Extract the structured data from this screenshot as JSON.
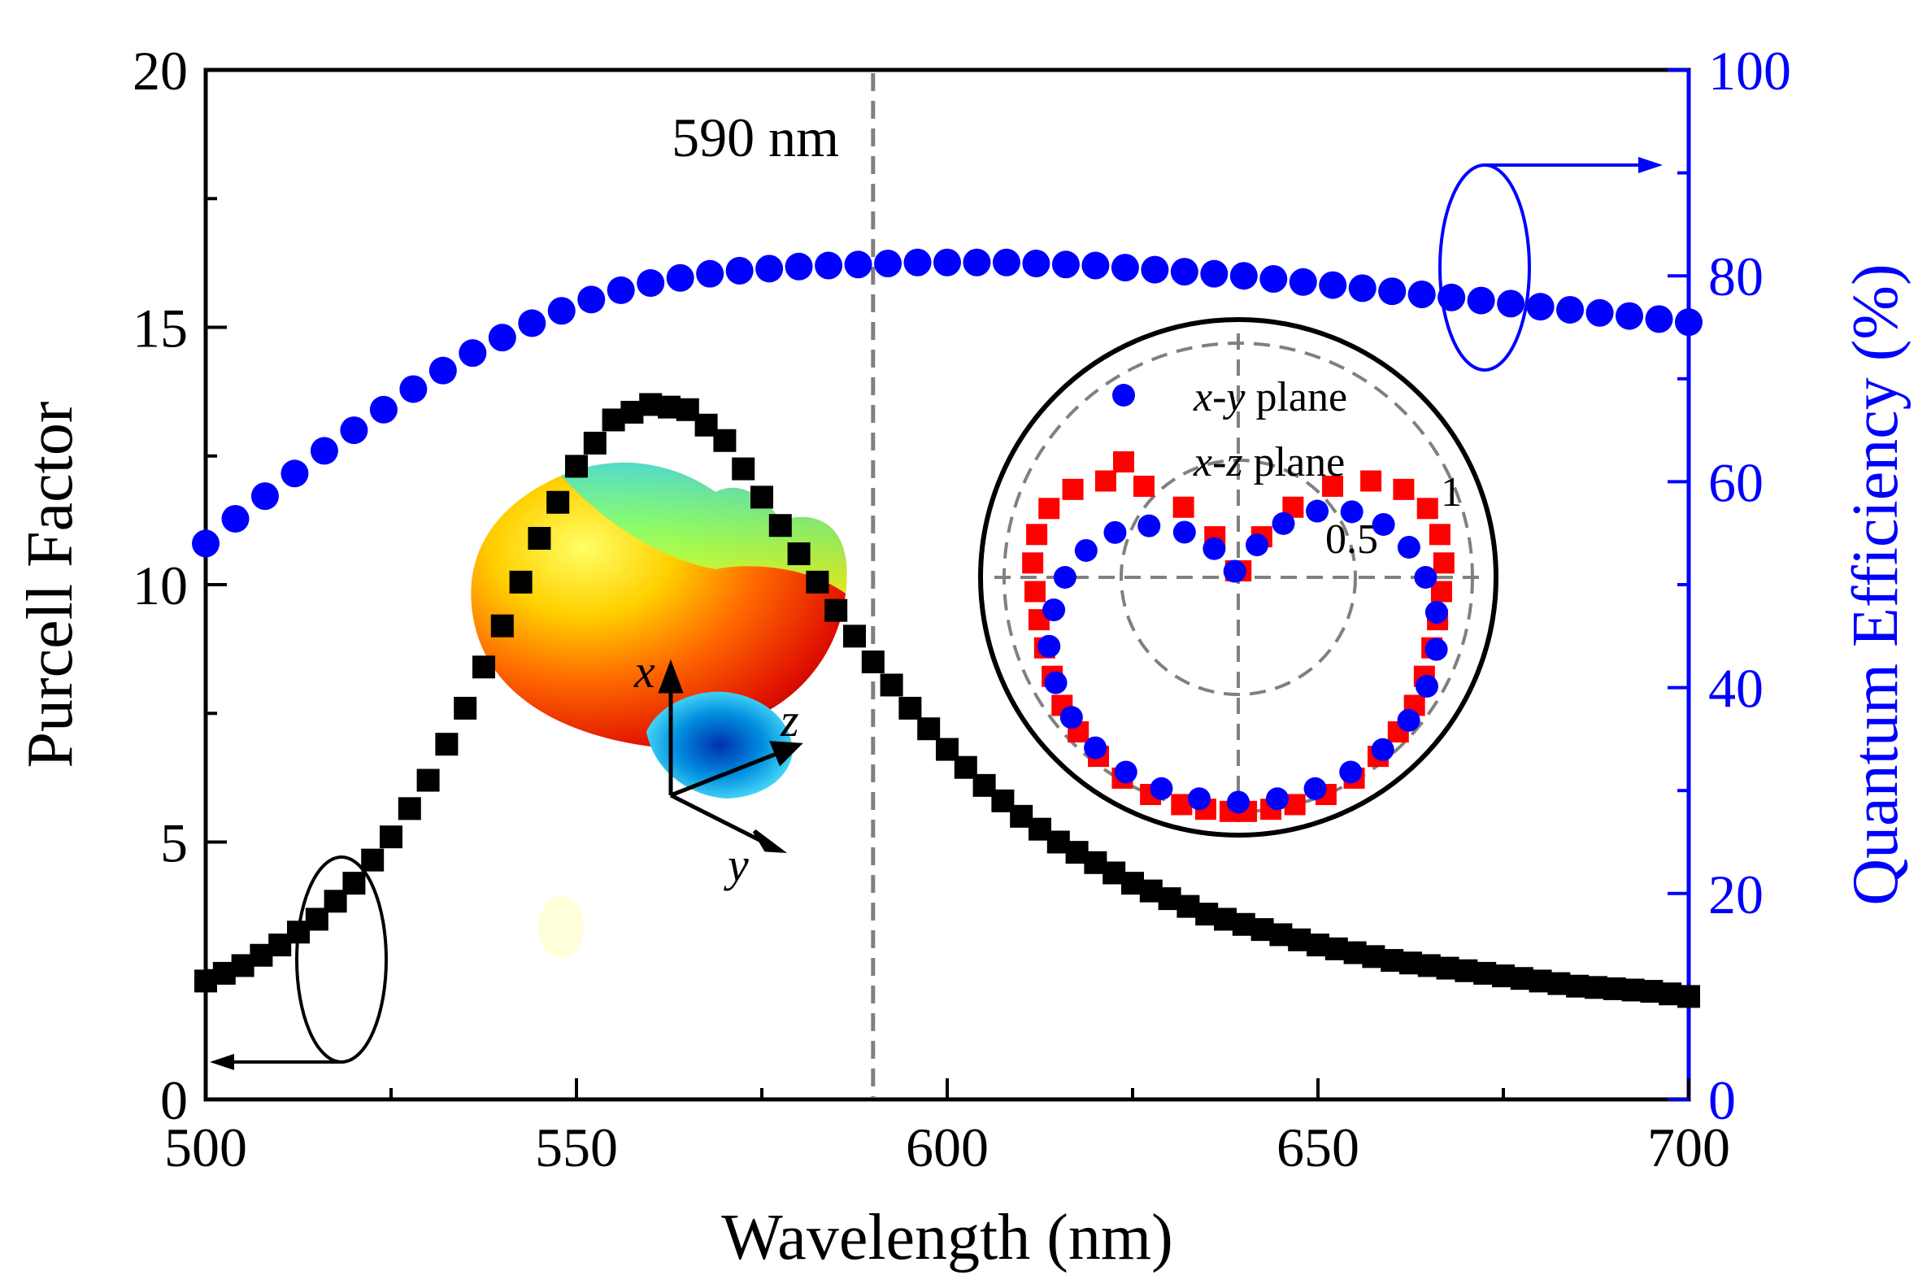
{
  "chart_data": {
    "type": "scatter",
    "xlabel": "Wavelength (nm)",
    "ylabel": "Purcell Factor",
    "y2label": "Quantum Efficiency (%)",
    "xlim": [
      500,
      700
    ],
    "ylim": [
      0,
      20
    ],
    "y2lim": [
      0,
      100
    ],
    "xticks": [
      "500",
      "550",
      "600",
      "650",
      "700"
    ],
    "yticks": [
      "0",
      "5",
      "10",
      "15",
      "20"
    ],
    "y2ticks": [
      "0",
      "20",
      "40",
      "60",
      "80",
      "100"
    ],
    "grid": false,
    "marker_line": {
      "x": 590,
      "label": "590 nm"
    },
    "colors": {
      "purcell": "#000000",
      "qe": "#0000ff",
      "xz": "#ff0000",
      "axis_right": "#0000ff"
    },
    "series": [
      {
        "axis": "left",
        "marker": "square",
        "color": "#000000",
        "x": [
          500,
          505,
          510,
          515,
          520,
          525,
          530,
          535,
          540,
          545,
          550,
          555,
          560,
          565,
          570,
          575,
          580,
          585,
          590,
          595,
          600,
          605,
          610,
          615,
          620,
          625,
          630,
          635,
          640,
          645,
          650,
          655,
          660,
          665,
          670,
          675,
          680,
          685,
          690,
          695,
          700
        ],
        "values": [
          2.3,
          2.6,
          3.0,
          3.5,
          4.2,
          5.1,
          6.2,
          7.6,
          9.2,
          10.9,
          12.3,
          13.2,
          13.5,
          13.4,
          12.8,
          11.7,
          10.6,
          9.5,
          8.5,
          7.6,
          6.8,
          6.1,
          5.5,
          5.0,
          4.6,
          4.2,
          3.9,
          3.6,
          3.4,
          3.2,
          3.0,
          2.85,
          2.7,
          2.6,
          2.5,
          2.4,
          2.3,
          2.2,
          2.15,
          2.1,
          2.0
        ]
      },
      {
        "axis": "right",
        "marker": "circle",
        "color": "#0000ff",
        "x": [
          500,
          504,
          508,
          512,
          516,
          520,
          524,
          528,
          532,
          536,
          540,
          544,
          548,
          552,
          556,
          560,
          564,
          568,
          572,
          576,
          580,
          584,
          588,
          592,
          596,
          600,
          604,
          608,
          612,
          616,
          620,
          624,
          628,
          632,
          636,
          640,
          644,
          648,
          652,
          656,
          660,
          664,
          668,
          672,
          676,
          680,
          684,
          688,
          692,
          696,
          700
        ],
        "values": [
          54.0,
          56.4,
          58.6,
          60.8,
          63.0,
          65.0,
          67.0,
          69.0,
          70.8,
          72.5,
          74.0,
          75.4,
          76.6,
          77.7,
          78.6,
          79.3,
          79.8,
          80.2,
          80.5,
          80.7,
          80.9,
          81.0,
          81.1,
          81.2,
          81.3,
          81.3,
          81.3,
          81.3,
          81.2,
          81.1,
          81.0,
          80.8,
          80.6,
          80.4,
          80.2,
          80.0,
          79.7,
          79.4,
          79.1,
          78.8,
          78.5,
          78.2,
          77.9,
          77.6,
          77.3,
          77.0,
          76.7,
          76.4,
          76.1,
          75.8,
          75.5
        ]
      }
    ],
    "inset_polar": {
      "legend": [
        {
          "label_italic": "x-y",
          "label_rest": " plane",
          "marker": "circle",
          "color": "#0000ff"
        },
        {
          "label_italic": "x-z",
          "label_rest": " plane",
          "marker": "square",
          "color": "#ff0000"
        }
      ],
      "radial_ticks": [
        "0.5",
        "1"
      ],
      "xy_plane": {
        "angles_deg": [
          120,
          130,
          140,
          150,
          160,
          170,
          180,
          190,
          200,
          210,
          220,
          230,
          240,
          250,
          260,
          270,
          280,
          290,
          300,
          310,
          320,
          330,
          340,
          350,
          360,
          370,
          380,
          390,
          400,
          410,
          420
        ],
        "r": [
          0.03,
          0.16,
          0.3,
          0.44,
          0.56,
          0.66,
          0.74,
          0.8,
          0.86,
          0.9,
          0.93,
          0.95,
          0.96,
          0.96,
          0.96,
          0.96,
          0.96,
          0.96,
          0.96,
          0.96,
          0.95,
          0.93,
          0.9,
          0.86,
          0.8,
          0.74,
          0.66,
          0.56,
          0.44,
          0.3,
          0.16
        ]
      },
      "xz_plane": {
        "angles_deg": [
          112,
          120,
          128,
          136,
          144,
          152,
          160,
          168,
          176,
          184,
          192,
          200,
          208,
          216,
          224,
          232,
          240,
          248,
          256,
          262,
          268,
          272,
          278,
          284,
          292,
          300,
          308,
          316,
          324,
          332,
          340,
          348,
          356,
          364,
          372,
          380,
          388,
          396,
          404,
          412,
          420,
          428
        ],
        "r": [
          0.03,
          0.2,
          0.38,
          0.56,
          0.7,
          0.8,
          0.86,
          0.88,
          0.88,
          0.87,
          0.87,
          0.88,
          0.9,
          0.93,
          0.95,
          0.97,
          0.99,
          1.0,
          1.0,
          1.0,
          1.0,
          1.0,
          1.0,
          1.0,
          1.0,
          0.99,
          0.97,
          0.95,
          0.93,
          0.9,
          0.88,
          0.87,
          0.87,
          0.88,
          0.88,
          0.86,
          0.8,
          0.7,
          0.56,
          0.38,
          0.2,
          0.03
        ]
      }
    },
    "inset_3d": {
      "axes": [
        "x",
        "z",
        "y"
      ]
    }
  }
}
